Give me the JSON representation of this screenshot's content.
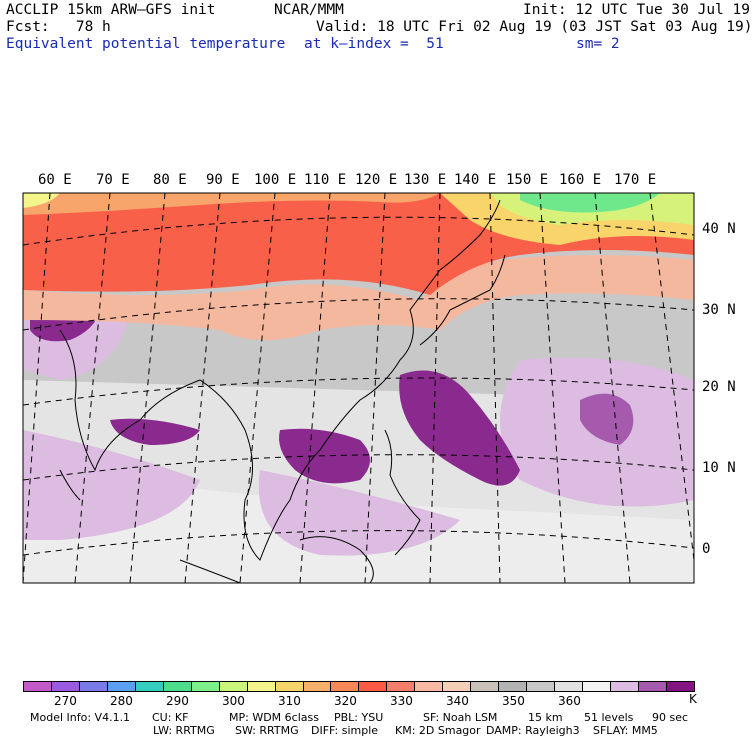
{
  "header": {
    "model": "ACCLIP 15km ARW–GFS init",
    "org": "NCAR/MMM",
    "init": "Init: 12 UTC Tue 30 Jul 19",
    "fcst": "Fcst:   78 h",
    "valid": "Valid: 18 UTC Fri 02 Aug 19 (03 JST Sat 03 Aug 19)",
    "field": "Equivalent potential temperature",
    "level": "at k–index =  51",
    "smooth": "sm= 2"
  },
  "map": {
    "longitude_labels": [
      "60 E",
      "70 E",
      "80 E",
      "90 E",
      "100 E",
      "110 E",
      "120 E",
      "130 E",
      "140 E",
      "150 E",
      "160 E",
      "170 E"
    ],
    "latitude_labels": [
      "40 N",
      "30 N",
      "20 N",
      "10 N",
      "0"
    ]
  },
  "colorbar": {
    "unit": "K",
    "tick_labels": [
      "270",
      "280",
      "290",
      "300",
      "310",
      "320",
      "330",
      "340",
      "350",
      "360"
    ],
    "colors": [
      "#c35ac8",
      "#9a5be0",
      "#7b7be8",
      "#5a9ff0",
      "#34cdbe",
      "#4bdc8c",
      "#7ef08a",
      "#c8f57a",
      "#f3f48a",
      "#f5d46a",
      "#f7b06b",
      "#f88758",
      "#fb5a45",
      "#f57f6a",
      "#f9b9a5",
      "#f4cfb7",
      "#c9c1b7",
      "#b3b3b3",
      "#c8c8c8",
      "#e1e1e1",
      "#f4f4f4",
      "#dcbce0",
      "#a55aae",
      "#84147f"
    ]
  },
  "model_info": {
    "line1": [
      "Model Info: V4.1.1",
      "CU: KF",
      "MP: WDM 6class",
      "PBL: YSU",
      "SF: Noah LSM",
      "15 km",
      "51 levels",
      "90 sec"
    ],
    "line2": [
      "LW: RRTMG",
      "SW: RRTMG",
      "DIFF: simple",
      "KM: 2D Smagor",
      "DAMP: Rayleigh3",
      "SFLAY: MM5"
    ]
  }
}
